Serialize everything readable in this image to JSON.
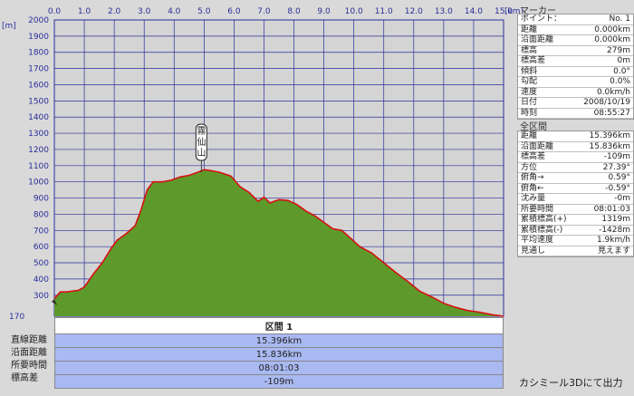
{
  "chart_data": {
    "type": "area",
    "x_unit": "[km]",
    "y_unit": "[m]",
    "xlim": [
      0,
      15
    ],
    "ylim": [
      170,
      2000
    ],
    "x_ticks": [
      "0.0",
      "1.0",
      "2.0",
      "3.0",
      "4.0",
      "5.0",
      "6.0",
      "7.0",
      "8.0",
      "9.0",
      "10.0",
      "11.0",
      "12.0",
      "13.0",
      "14.0",
      "15.0"
    ],
    "y_ticks": [
      300,
      400,
      500,
      600,
      700,
      800,
      900,
      1000,
      1100,
      1200,
      1300,
      1400,
      1500,
      1600,
      1700,
      1800,
      1900,
      2000
    ],
    "y_min_label": 170,
    "annotation": {
      "text": "霧仙山",
      "x": 5.0,
      "y": 1060
    },
    "x": [
      0,
      0.2,
      0.4,
      0.8,
      1.0,
      1.3,
      1.6,
      1.9,
      2.1,
      2.4,
      2.7,
      2.9,
      3.1,
      3.3,
      3.6,
      3.9,
      4.2,
      4.5,
      4.8,
      5.0,
      5.2,
      5.5,
      5.9,
      6.2,
      6.5,
      6.8,
      7.0,
      7.2,
      7.5,
      7.8,
      8.1,
      8.4,
      8.7,
      9.0,
      9.3,
      9.6,
      9.9,
      10.2,
      10.6,
      11.0,
      11.4,
      11.8,
      12.2,
      12.6,
      13.0,
      13.4,
      13.8,
      14.2,
      14.6,
      15.0
    ],
    "y": [
      279,
      320,
      320,
      330,
      350,
      430,
      500,
      590,
      640,
      680,
      730,
      830,
      950,
      1000,
      1000,
      1010,
      1030,
      1040,
      1060,
      1075,
      1070,
      1060,
      1035,
      970,
      935,
      880,
      905,
      870,
      890,
      885,
      860,
      820,
      790,
      750,
      710,
      700,
      650,
      600,
      560,
      500,
      440,
      385,
      325,
      290,
      250,
      225,
      205,
      195,
      180,
      170
    ]
  },
  "segment": {
    "header": "区間 1",
    "labels": [
      "直線距離",
      "沿面距離",
      "所要時間",
      "標高差"
    ],
    "values": [
      "15.396km",
      "15.836km",
      "08:01:03",
      "-109m"
    ]
  },
  "marker": {
    "title": "マーカー",
    "rows": [
      [
        "ポイント：",
        "No. 1"
      ],
      [
        "距離",
        "0.000km"
      ],
      [
        "沿面距離",
        "0.000km"
      ],
      [
        "標高",
        "279m"
      ],
      [
        "標高差",
        "0m"
      ],
      [
        "傾斜",
        "0.0°"
      ],
      [
        "勾配",
        "0.0%"
      ],
      [
        "速度",
        "0.0km/h"
      ],
      [
        "日付",
        "2008/10/19"
      ],
      [
        "時刻",
        "08:55:27"
      ]
    ]
  },
  "total": {
    "title": "全区間",
    "rows": [
      [
        "距離",
        "15.396km"
      ],
      [
        "沿面距離",
        "15.836km"
      ],
      [
        "標高差",
        "-109m"
      ],
      [
        "方位",
        "27.39°"
      ],
      [
        "俯角→",
        "0.59°"
      ],
      [
        "俯角←",
        "-0.59°"
      ],
      [
        "沈み量",
        "-0m"
      ],
      [
        "所要時間",
        "08:01:03"
      ],
      [
        "累積標高(+)",
        "1319m"
      ],
      [
        "累積標高(-)",
        "-1428m"
      ],
      [
        "平均速度",
        "1.9km/h"
      ],
      [
        "見通し",
        "見えます"
      ]
    ]
  },
  "footer": "カシミール3Dにて出力",
  "colors": {
    "fill": "#5e9a2b",
    "line": "#d61010",
    "grid": "#2a2f9a",
    "plot_bg": "#d4d4d4"
  }
}
